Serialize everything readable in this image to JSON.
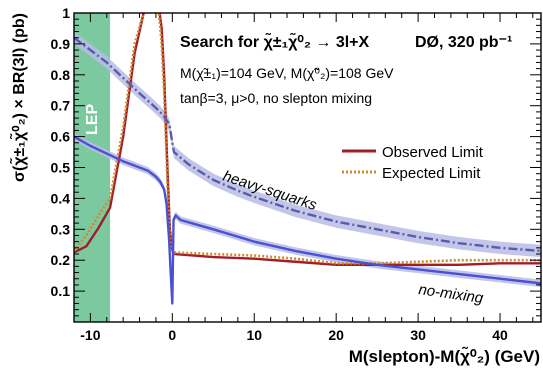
{
  "chart_data": {
    "type": "line",
    "title": "Search for χ̃±₁χ̃⁰₂ → 3l+X",
    "experiment_label": "DØ, 320 pb⁻¹",
    "annotation_masses": "M(χ̃±₁)=104 GeV, M(χ̃⁰₂)=108 GeV",
    "annotation_params": "tanβ=3, μ>0, no slepton mixing",
    "xlabel": "M(slepton)-M(χ̃⁰₂) (GeV)",
    "ylabel": "σ(χ̃±₁χ̃⁰₂) × BR(3l) (pb)",
    "xlim": [
      -12,
      45
    ],
    "ylim": [
      0,
      1
    ],
    "x_ticks": [
      -10,
      0,
      10,
      20,
      30,
      40
    ],
    "x_tick_labels": [
      "-10",
      "0",
      "10",
      "20",
      "30",
      "40"
    ],
    "y_ticks": [
      0.1,
      0.2,
      0.3,
      0.4,
      0.5,
      0.6,
      0.7,
      0.8,
      0.9,
      1.0
    ],
    "y_tick_labels": [
      "0.1",
      "0.2",
      "0.3",
      "0.4",
      "0.5",
      "0.6",
      "0.7",
      "0.8",
      "0.9",
      "1"
    ],
    "grid": false,
    "legend_position": "right",
    "excluded_region": {
      "label": "LEP",
      "x_range": [
        -12,
        -7.6
      ],
      "color": "#7cc9a0"
    },
    "series": [
      {
        "name": "Observed Limit",
        "style": "solid",
        "color": "#a01e2a",
        "x": [
          -12,
          -10.5,
          -9,
          -7.6,
          -6,
          -4.6,
          -3.5,
          -2.5,
          -1.8,
          -1.3,
          -1.0,
          -0.6,
          -0.3,
          0.0,
          0.3,
          5,
          10,
          15,
          20,
          25,
          30,
          35,
          40,
          45
        ],
        "y": [
          0.225,
          0.245,
          0.305,
          0.37,
          0.6,
          0.87,
          1.0,
          1.05,
          1.05,
          0.95,
          0.8,
          0.5,
          0.3,
          0.23,
          0.22,
          0.21,
          0.205,
          0.195,
          0.185,
          0.185,
          0.185,
          0.185,
          0.19,
          0.19
        ]
      },
      {
        "name": "Expected Limit",
        "style": "dotted",
        "color": "#d08a2e",
        "x": [
          -12,
          -10.5,
          -9,
          -7.6,
          -6,
          -4.6,
          -3.5,
          -2.5,
          -1.8,
          -1.3,
          -1.0,
          -0.6,
          -0.3,
          0.0,
          0.3,
          5,
          10,
          15,
          20,
          25,
          30,
          35,
          40,
          45
        ],
        "y": [
          0.23,
          0.28,
          0.345,
          0.4,
          0.63,
          0.9,
          1.0,
          1.05,
          1.05,
          0.9,
          0.75,
          0.45,
          0.28,
          0.23,
          0.225,
          0.22,
          0.215,
          0.205,
          0.19,
          0.19,
          0.195,
          0.2,
          0.2,
          0.2
        ]
      },
      {
        "name": "heavy-squarks",
        "style": "dash-dot",
        "color": "#5a5ab0",
        "band_color": "#b9bde3",
        "band_halfwidth": 0.02,
        "x": [
          -12,
          -10,
          -8,
          -6,
          -4,
          -2.5,
          -1.5,
          -1.0,
          -0.5,
          -0.3,
          0.0,
          0.2,
          2,
          5,
          8,
          10,
          15,
          20,
          25,
          30,
          35,
          40,
          45
        ],
        "y": [
          0.92,
          0.88,
          0.84,
          0.79,
          0.74,
          0.705,
          0.68,
          0.665,
          0.645,
          0.63,
          0.58,
          0.55,
          0.51,
          0.46,
          0.425,
          0.405,
          0.36,
          0.325,
          0.3,
          0.275,
          0.255,
          0.24,
          0.23
        ]
      },
      {
        "name": "no-mixing",
        "style": "solid",
        "color": "#4c50d6",
        "band_color": "#b9bde3",
        "band_halfwidth": 0.012,
        "x": [
          -12,
          -10,
          -8,
          -6,
          -4,
          -3,
          -2,
          -1.5,
          -1.0,
          -0.7,
          -0.4,
          -0.2,
          0.0,
          0.15,
          0.4,
          1,
          3,
          5,
          10,
          15,
          20,
          25,
          30,
          35,
          40,
          45
        ],
        "y": [
          0.6,
          0.57,
          0.545,
          0.52,
          0.5,
          0.49,
          0.47,
          0.455,
          0.43,
          0.38,
          0.27,
          0.16,
          0.06,
          0.33,
          0.345,
          0.33,
          0.315,
          0.3,
          0.26,
          0.23,
          0.205,
          0.185,
          0.17,
          0.155,
          0.14,
          0.125
        ]
      }
    ],
    "curve_labels": [
      {
        "text": "heavy-squarks",
        "series": "heavy-squarks"
      },
      {
        "text": "no-mixing",
        "series": "no-mixing"
      }
    ],
    "colors": {
      "observed": "#a01e2a",
      "expected": "#d08a2e",
      "heavy_squarks": "#5a5ab0",
      "no_mixing": "#4c50d6",
      "band": "#b9bde3",
      "lep": "#7cc9a0"
    }
  }
}
